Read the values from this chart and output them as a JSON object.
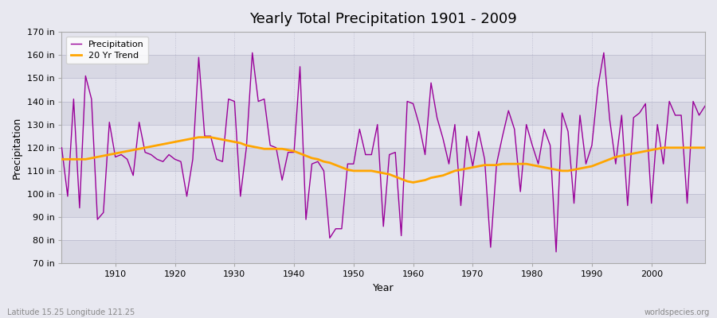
{
  "title": "Yearly Total Precipitation 1901 - 2009",
  "xlabel": "Year",
  "ylabel": "Precipitation",
  "start_year": 1901,
  "end_year": 2009,
  "ylim": [
    70,
    170
  ],
  "yticks": [
    70,
    80,
    90,
    100,
    110,
    120,
    130,
    140,
    150,
    160,
    170
  ],
  "ytick_labels": [
    "70 in",
    "80 in",
    "90 in",
    "100 in",
    "110 in",
    "120 in",
    "130 in",
    "140 in",
    "150 in",
    "160 in",
    "170 in"
  ],
  "precip_color": "#990099",
  "trend_color": "#FFA500",
  "bg_color": "#E8E8F0",
  "band_color_light": "#DCDCE8",
  "band_color_dark": "#E8E8F4",
  "grid_color": "#C8C8D8",
  "legend_entries": [
    "Precipitation",
    "20 Yr Trend"
  ],
  "subtitle_left": "Latitude 15.25 Longitude 121.25",
  "subtitle_right": "worldspecies.org",
  "precipitation": [
    120,
    99,
    141,
    94,
    151,
    141,
    89,
    92,
    131,
    116,
    117,
    115,
    108,
    131,
    118,
    117,
    115,
    114,
    117,
    115,
    114,
    99,
    115,
    159,
    125,
    125,
    115,
    114,
    141,
    140,
    99,
    120,
    161,
    140,
    141,
    121,
    120,
    106,
    118,
    118,
    155,
    89,
    113,
    114,
    110,
    81,
    85,
    85,
    113,
    113,
    128,
    117,
    117,
    130,
    86,
    117,
    118,
    82,
    140,
    139,
    130,
    117,
    148,
    133,
    124,
    113,
    130,
    95,
    125,
    112,
    127,
    115,
    77,
    113,
    125,
    136,
    128,
    101,
    130,
    121,
    113,
    128,
    121,
    75,
    135,
    127,
    96,
    134,
    113,
    121,
    146,
    161,
    132,
    113,
    134,
    95,
    133,
    135,
    139,
    96,
    130,
    113,
    140,
    134,
    134,
    96,
    140,
    134,
    138
  ],
  "trend": [
    115.0,
    115.0,
    115.0,
    115.0,
    115.0,
    115.5,
    116.0,
    116.5,
    117.0,
    117.5,
    118.0,
    118.5,
    119.0,
    119.5,
    120.0,
    120.5,
    121.0,
    121.5,
    122.0,
    122.5,
    123.0,
    123.5,
    124.0,
    124.5,
    124.5,
    124.5,
    124.0,
    123.5,
    123.0,
    122.5,
    122.0,
    121.0,
    120.5,
    120.0,
    119.5,
    119.5,
    119.5,
    119.5,
    119.0,
    118.5,
    117.5,
    116.5,
    115.5,
    115.0,
    114.0,
    113.5,
    112.5,
    111.5,
    110.5,
    110.0,
    110.0,
    110.0,
    110.0,
    109.5,
    109.0,
    108.5,
    107.5,
    106.5,
    105.5,
    105.0,
    105.5,
    106.0,
    107.0,
    107.5,
    108.0,
    109.0,
    110.0,
    110.5,
    111.0,
    111.5,
    112.0,
    112.5,
    112.5,
    112.5,
    113.0,
    113.0,
    113.0,
    113.0,
    113.0,
    112.5,
    112.0,
    111.5,
    111.0,
    110.5,
    110.0,
    110.0,
    110.5,
    111.0,
    111.5,
    112.0,
    113.0,
    114.0,
    115.0,
    116.0,
    116.5,
    117.0,
    117.5,
    118.0,
    118.5,
    119.0,
    119.5,
    120.0,
    120.0,
    120.0,
    120.0,
    120.0,
    120.0,
    120.0,
    120.0
  ]
}
